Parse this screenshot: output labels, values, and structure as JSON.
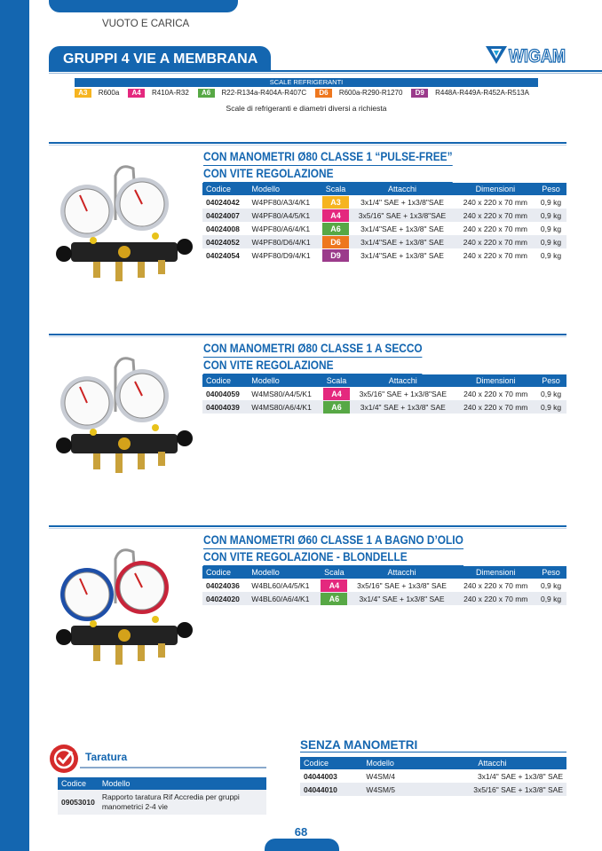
{
  "header": {
    "category": "VUOTO E CARICA",
    "title": "GRUPPI 4 VIE A MEMBRANA",
    "logo_text": "WIGAM"
  },
  "colors": {
    "brand": "#1466b0",
    "A3": "#f6b420",
    "A4": "#e4287e",
    "A6": "#57a845",
    "D6": "#ee771e",
    "D9": "#9b3b8b"
  },
  "legend": {
    "title": "SCALE REFRIGERANTI",
    "items": [
      {
        "code": "A3",
        "text": "R600a"
      },
      {
        "code": "A4",
        "text": "R410A-R32"
      },
      {
        "code": "A6",
        "text": "R22-R134a-R404A-R407C"
      },
      {
        "code": "D6",
        "text": "R600a-R290-R1270"
      },
      {
        "code": "D9",
        "text": "R448A-R449A-R452A-R513A"
      }
    ],
    "note": "Scale di refrigeranti e diametri diversi a richiesta"
  },
  "columns": [
    "Codice",
    "Modello",
    "Scala",
    "Attacchi",
    "Dimensioni",
    "Peso"
  ],
  "products": [
    {
      "title": [
        "CON MANOMETRI Ø80 CLASSE 1 “PULSE-FREE”",
        "CON VITE REGOLAZIONE"
      ],
      "image": "manifold-gauge-set-white-dials",
      "rows": [
        [
          "04024042",
          "W4PF80/A3/4/K1",
          "A3",
          "3x1/4\" SAE + 1x3/8\"SAE",
          "240 x 220 x 70 mm",
          "0,9 kg"
        ],
        [
          "04024007",
          "W4PF80/A4/5/K1",
          "A4",
          "3x5/16\" SAE + 1x3/8\"SAE",
          "240 x 220 x 70 mm",
          "0,9 kg"
        ],
        [
          "04024008",
          "W4PF80/A6/4/K1",
          "A6",
          "3x1/4\"SAE + 1x3/8\" SAE",
          "240 x 220 x 70 mm",
          "0,9 kg"
        ],
        [
          "04024052",
          "W4PF80/D6/4/K1",
          "D6",
          "3x1/4\"SAE + 1x3/8\" SAE",
          "240 x 220 x 70 mm",
          "0,9 kg"
        ],
        [
          "04024054",
          "W4PF80/D9/4/K1",
          "D9",
          "3x1/4\"SAE + 1x3/8\" SAE",
          "240 x 220 x 70 mm",
          "0,9 kg"
        ]
      ]
    },
    {
      "title": [
        "CON MANOMETRI Ø80 CLASSE 1 A SECCO",
        "CON VITE REGOLAZIONE"
      ],
      "image": "manifold-gauge-set-white-dials",
      "rows": [
        [
          "04004059",
          "W4MS80/A4/5/K1",
          "A4",
          "3x5/16\" SAE + 1x3/8\"SAE",
          "240 x 220 x 70 mm",
          "0,9 kg"
        ],
        [
          "04004039",
          "W4MS80/A6/4/K1",
          "A6",
          "3x1/4\" SAE + 1x3/8\" SAE",
          "240 x 220 x 70 mm",
          "0,9 kg"
        ]
      ]
    },
    {
      "title": [
        "CON MANOMETRI Ø60 CLASSE 1 A BAGNO D’OLIO",
        "CON VITE REGOLAZIONE - BLONDELLE"
      ],
      "image": "manifold-gauge-set-blue-red-dials",
      "rows": [
        [
          "04024036",
          "W4BL60/A4/5/K1",
          "A4",
          "3x5/16\" SAE + 1x3/8\" SAE",
          "240 x 220 x 70 mm",
          "0,9 kg"
        ],
        [
          "04024020",
          "W4BL60/A6/4/K1",
          "A6",
          "3x1/4\" SAE + 1x3/8\" SAE",
          "240 x 220 x 70 mm",
          "0,9 kg"
        ]
      ]
    }
  ],
  "taratura": {
    "title": "Taratura",
    "icon": "check-seal-icon",
    "columns": [
      "Codice",
      "Modello"
    ],
    "rows": [
      [
        "09053010",
        "Rapporto taratura Rif Accredia per gruppi manometrici 2-4 vie"
      ]
    ]
  },
  "senza": {
    "title": "SENZA MANOMETRI",
    "columns": [
      "Codice",
      "Modello",
      "Attacchi"
    ],
    "rows": [
      [
        "04044003",
        "W4SM/4",
        "3x1/4\" SAE + 1x3/8\" SAE"
      ],
      [
        "04044010",
        "W4SM/5",
        "3x5/16\" SAE + 1x3/8\" SAE"
      ]
    ]
  },
  "page_number": "68"
}
